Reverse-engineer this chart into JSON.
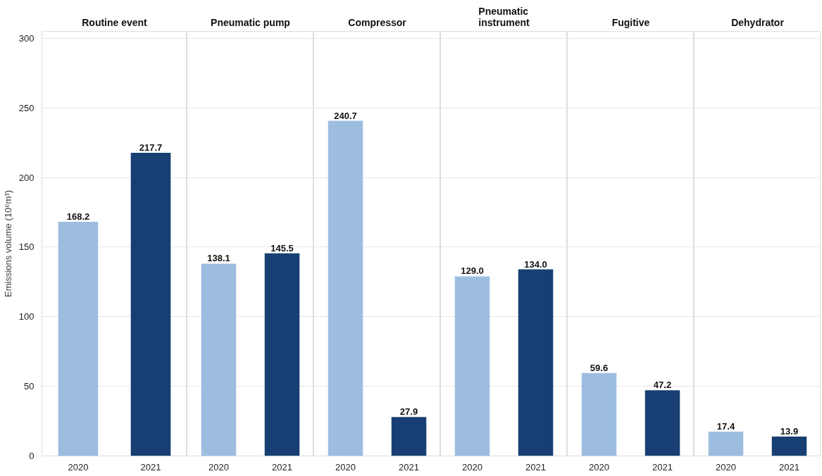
{
  "chart_data": [
    {
      "type": "bar",
      "title": "Routine event",
      "ylabel": "Emissions volume (10⁶m³)",
      "categories": [
        "2020",
        "2021"
      ],
      "values": [
        168.2,
        217.7
      ],
      "colors": [
        "#9dbde0",
        "#173f73"
      ],
      "ylim": [
        0,
        305
      ],
      "yticks": [
        0,
        50,
        100,
        150,
        200,
        250,
        300
      ],
      "grid": "y",
      "data_labels": true
    },
    {
      "type": "bar",
      "title": "Pneumatic pump",
      "categories": [
        "2020",
        "2021"
      ],
      "values": [
        138.1,
        145.5
      ],
      "colors": [
        "#9dbde0",
        "#173f73"
      ],
      "ylim": [
        0,
        305
      ],
      "grid": "y",
      "data_labels": true,
      "tick_labels": "x"
    },
    {
      "type": "bar",
      "title": "Compressor",
      "categories": [
        "2020",
        "2021"
      ],
      "values": [
        240.7,
        27.9
      ],
      "colors": [
        "#9dbde0",
        "#173f73"
      ],
      "ylim": [
        0,
        305
      ],
      "grid": "y",
      "data_labels": true,
      "tick_labels": "x"
    },
    {
      "type": "bar",
      "title": "Pneumatic instrument",
      "categories": [
        "2020",
        "2021"
      ],
      "values": [
        129.0,
        134.0
      ],
      "value_labels": [
        "129.0",
        "134.0"
      ],
      "colors": [
        "#9dbde0",
        "#173f73"
      ],
      "ylim": [
        0,
        305
      ],
      "grid": "y",
      "tick_labels": "x"
    },
    {
      "type": "bar",
      "title": "Fugitive",
      "categories": [
        "2020",
        "2021"
      ],
      "values": [
        59.6,
        47.2
      ],
      "colors": [
        "#9dbde0",
        "#173f73"
      ],
      "ylim": [
        0,
        305
      ],
      "grid": "y",
      "data_labels": true,
      "tick_labels": "x"
    },
    {
      "type": "bar",
      "title": "Dehydrator",
      "categories": [
        "2020",
        "2021"
      ],
      "values": [
        17.4,
        13.9
      ],
      "colors": [
        "#9dbde0",
        "#173f73"
      ],
      "ylim": [
        0,
        305
      ],
      "grid": "y",
      "data_labels": true,
      "tick_labels": "x"
    }
  ]
}
